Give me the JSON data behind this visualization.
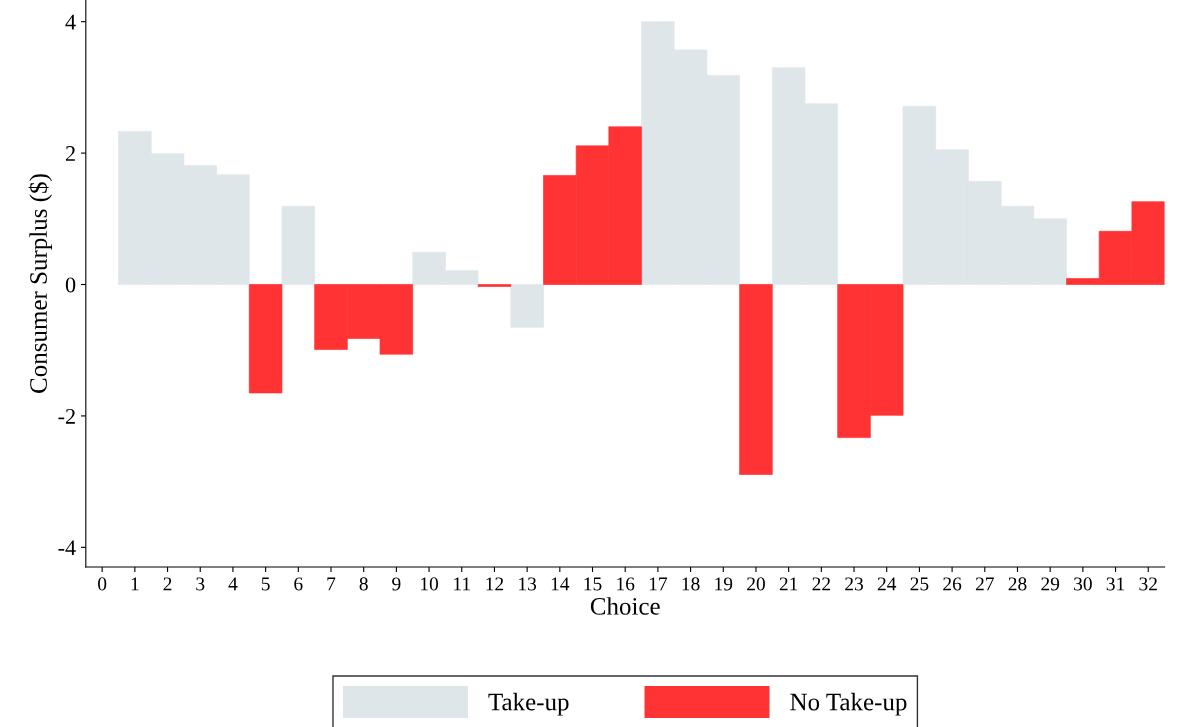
{
  "chart_data": {
    "type": "bar",
    "xlabel": "Choice",
    "ylabel": "Consumer Surplus ($)",
    "x": [
      1,
      2,
      3,
      4,
      5,
      6,
      7,
      8,
      9,
      10,
      11,
      12,
      13,
      14,
      15,
      16,
      17,
      18,
      19,
      20,
      21,
      22,
      23,
      24,
      25,
      26,
      27,
      28,
      29,
      30,
      31,
      32
    ],
    "series": [
      {
        "name": "Take-up",
        "color": "#dfe6ea",
        "values": [
          2.33,
          1.99,
          1.81,
          1.67,
          null,
          1.19,
          null,
          null,
          null,
          0.49,
          0.21,
          null,
          -0.65,
          null,
          null,
          null,
          4.0,
          3.57,
          3.18,
          null,
          3.3,
          2.75,
          null,
          null,
          2.71,
          2.05,
          1.57,
          1.19,
          1.0,
          null,
          null,
          null
        ]
      },
      {
        "name": "No Take-up",
        "color": "#ff3333",
        "values": [
          null,
          null,
          null,
          null,
          -1.65,
          null,
          -0.99,
          -0.82,
          -1.06,
          null,
          null,
          -0.03,
          null,
          1.66,
          2.11,
          2.4,
          null,
          null,
          null,
          -2.89,
          null,
          null,
          -2.33,
          -1.99,
          null,
          null,
          null,
          null,
          null,
          0.09,
          0.81,
          1.26
        ]
      }
    ],
    "xlim": [
      -0.5,
      32.5
    ],
    "xticks": [
      0,
      1,
      2,
      3,
      4,
      5,
      6,
      7,
      8,
      9,
      10,
      11,
      12,
      13,
      14,
      15,
      16,
      17,
      18,
      19,
      20,
      21,
      22,
      23,
      24,
      25,
      26,
      27,
      28,
      29,
      30,
      31,
      32
    ],
    "ylim": [
      -4.3,
      4.33
    ],
    "yticks": [
      -4,
      -2,
      0,
      2,
      4
    ],
    "grid": false,
    "legend": "bottom"
  }
}
